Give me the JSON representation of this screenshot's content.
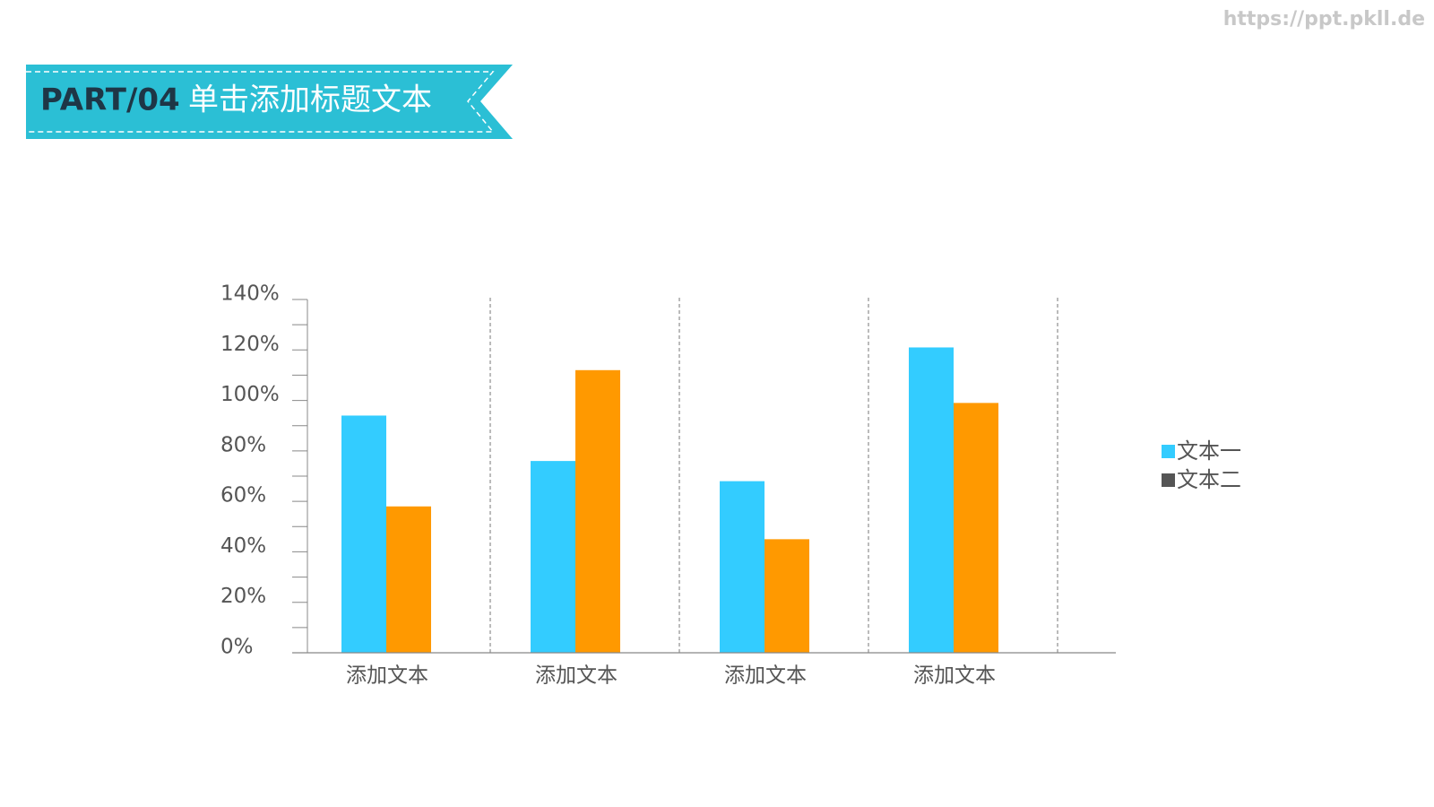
{
  "header": {
    "part": "PART/04",
    "title": "单击添加标题文本"
  },
  "watermark": "https://ppt.pkll.de",
  "chart_data": {
    "type": "bar",
    "categories": [
      "添加文本",
      "添加文本",
      "添加文本",
      "添加文本"
    ],
    "series": [
      {
        "name": "文本一",
        "color": "#33ccff",
        "legend_color": "#33ccff",
        "values": [
          94,
          76,
          68,
          121
        ]
      },
      {
        "name": "文本二",
        "color": "#ff9900",
        "legend_color": "#555555",
        "values": [
          58,
          112,
          45,
          99
        ]
      }
    ],
    "ylim": [
      0,
      140
    ],
    "yticks": [
      {
        "value": 0,
        "label": "0%"
      },
      {
        "value": 20,
        "label": "20%"
      },
      {
        "value": 40,
        "label": "40%"
      },
      {
        "value": 60,
        "label": "60%"
      },
      {
        "value": 80,
        "label": "80%"
      },
      {
        "value": 100,
        "label": "100%"
      },
      {
        "value": 120,
        "label": "120%"
      },
      {
        "value": 140,
        "label": "140%"
      }
    ],
    "minor_yticks": [
      10,
      30,
      50,
      70,
      90,
      110,
      130
    ],
    "legend": "right"
  }
}
